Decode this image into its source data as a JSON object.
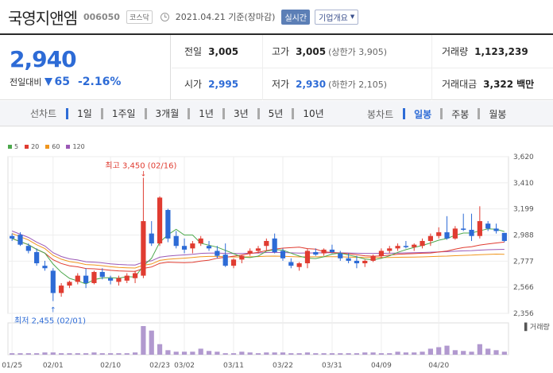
{
  "header": {
    "stock_name": "국영지앤엠",
    "stock_code": "006050",
    "market": "코스닥",
    "date": "2021.04.21 기준(장마감)",
    "realtime": "실시간",
    "company_info": "기업개요"
  },
  "summary": {
    "price": "2,940",
    "change_label": "전일대비",
    "change_value": "65",
    "change_pct": "-2.16%",
    "prev_close_label": "전일",
    "prev_close": "3,005",
    "high_label": "고가",
    "high": "3,005",
    "high_sub": "(상한가 3,905)",
    "volume_label": "거래량",
    "volume": "1,123,239",
    "open_label": "시가",
    "open": "2,995",
    "low_label": "저가",
    "low": "2,930",
    "low_sub": "(하한가 2,105)",
    "amount_label": "거래대금",
    "amount": "3,322",
    "amount_unit": "백만"
  },
  "tabs": {
    "line_chart_label": "선차트",
    "periods": [
      "1일",
      "1주일",
      "3개월",
      "1년",
      "3년",
      "5년",
      "10년"
    ],
    "candle_label": "봉차트",
    "candle_periods": [
      "일봉",
      "주봉",
      "월봉"
    ]
  },
  "colors": {
    "up": "#e03c31",
    "down": "#2d6bd6",
    "ma5": "#4ca84c",
    "ma20": "#e03c31",
    "ma60": "#f0961e",
    "ma120": "#9b59b6",
    "volume": "#b199cf"
  },
  "chart_data": {
    "type": "candlestick",
    "legend": [
      {
        "name": "5",
        "color": "#4ca84c"
      },
      {
        "name": "20",
        "color": "#e03c31"
      },
      {
        "name": "60",
        "color": "#f0961e"
      },
      {
        "name": "120",
        "color": "#9b59b6"
      }
    ],
    "y_ticks": [
      "3,620",
      "3,410",
      "3,199",
      "2,988",
      "2,777",
      "2,566",
      "2,356"
    ],
    "ylim": [
      2356,
      3620
    ],
    "x_ticks": [
      {
        "label": "01/25",
        "index": 0
      },
      {
        "label": "02/01",
        "index": 5
      },
      {
        "label": "02/10",
        "index": 12
      },
      {
        "label": "02/23",
        "index": 18
      },
      {
        "label": "03/02",
        "index": 21
      },
      {
        "label": "03/11",
        "index": 27
      },
      {
        "label": "03/22",
        "index": 33
      },
      {
        "label": "03/31",
        "index": 39
      },
      {
        "label": "04/09",
        "index": 45
      },
      {
        "label": "04/20",
        "index": 52
      }
    ],
    "high_annotation": "최고 3,450 (02/16)",
    "low_annotation": "최저 2,455 (02/01)",
    "volume_label": "거래량",
    "candles": [
      {
        "o": 2980,
        "h": 3000,
        "l": 2940,
        "c": 2960
      },
      {
        "o": 2990,
        "h": 3010,
        "l": 2900,
        "c": 2910
      },
      {
        "o": 2900,
        "h": 2920,
        "l": 2840,
        "c": 2860
      },
      {
        "o": 2850,
        "h": 2880,
        "l": 2740,
        "c": 2760
      },
      {
        "o": 2740,
        "h": 2780,
        "l": 2700,
        "c": 2720
      },
      {
        "o": 2700,
        "h": 2720,
        "l": 2455,
        "c": 2520
      },
      {
        "o": 2520,
        "h": 2600,
        "l": 2490,
        "c": 2580
      },
      {
        "o": 2580,
        "h": 2620,
        "l": 2560,
        "c": 2610
      },
      {
        "o": 2610,
        "h": 2680,
        "l": 2590,
        "c": 2660
      },
      {
        "o": 2660,
        "h": 2720,
        "l": 2560,
        "c": 2600
      },
      {
        "o": 2600,
        "h": 2700,
        "l": 2590,
        "c": 2690
      },
      {
        "o": 2690,
        "h": 2720,
        "l": 2630,
        "c": 2650
      },
      {
        "o": 2640,
        "h": 2660,
        "l": 2590,
        "c": 2620
      },
      {
        "o": 2610,
        "h": 2660,
        "l": 2580,
        "c": 2640
      },
      {
        "o": 2620,
        "h": 2680,
        "l": 2600,
        "c": 2660
      },
      {
        "o": 2640,
        "h": 2700,
        "l": 2600,
        "c": 2680
      },
      {
        "o": 2660,
        "h": 3450,
        "l": 2640,
        "c": 3100
      },
      {
        "o": 3000,
        "h": 3100,
        "l": 2900,
        "c": 2920
      },
      {
        "o": 2920,
        "h": 3300,
        "l": 2900,
        "c": 3290
      },
      {
        "o": 3190,
        "h": 3200,
        "l": 2930,
        "c": 2960
      },
      {
        "o": 2980,
        "h": 3020,
        "l": 2880,
        "c": 2900
      },
      {
        "o": 2900,
        "h": 2960,
        "l": 2840,
        "c": 2870
      },
      {
        "o": 2880,
        "h": 2940,
        "l": 2840,
        "c": 2920
      },
      {
        "o": 2920,
        "h": 2980,
        "l": 2900,
        "c": 2960
      },
      {
        "o": 2900,
        "h": 2940,
        "l": 2860,
        "c": 2880
      },
      {
        "o": 2860,
        "h": 2900,
        "l": 2800,
        "c": 2820
      },
      {
        "o": 2830,
        "h": 2920,
        "l": 2730,
        "c": 2740
      },
      {
        "o": 2740,
        "h": 2800,
        "l": 2720,
        "c": 2790
      },
      {
        "o": 2790,
        "h": 2830,
        "l": 2760,
        "c": 2820
      },
      {
        "o": 2840,
        "h": 2880,
        "l": 2820,
        "c": 2860
      },
      {
        "o": 2860,
        "h": 2900,
        "l": 2840,
        "c": 2880
      },
      {
        "o": 2900,
        "h": 2960,
        "l": 2860,
        "c": 2940
      },
      {
        "o": 2960,
        "h": 3000,
        "l": 2840,
        "c": 2850
      },
      {
        "o": 2860,
        "h": 2880,
        "l": 2780,
        "c": 2800
      },
      {
        "o": 2770,
        "h": 2800,
        "l": 2720,
        "c": 2740
      },
      {
        "o": 2730,
        "h": 2770,
        "l": 2700,
        "c": 2760
      },
      {
        "o": 2760,
        "h": 2880,
        "l": 2720,
        "c": 2860
      },
      {
        "o": 2850,
        "h": 2880,
        "l": 2820,
        "c": 2830
      },
      {
        "o": 2840,
        "h": 2880,
        "l": 2820,
        "c": 2870
      },
      {
        "o": 2870,
        "h": 2910,
        "l": 2840,
        "c": 2850
      },
      {
        "o": 2840,
        "h": 2860,
        "l": 2780,
        "c": 2800
      },
      {
        "o": 2800,
        "h": 2840,
        "l": 2760,
        "c": 2780
      },
      {
        "o": 2780,
        "h": 2820,
        "l": 2720,
        "c": 2760
      },
      {
        "o": 2760,
        "h": 2790,
        "l": 2730,
        "c": 2780
      },
      {
        "o": 2780,
        "h": 2830,
        "l": 2770,
        "c": 2820
      },
      {
        "o": 2820,
        "h": 2880,
        "l": 2800,
        "c": 2860
      },
      {
        "o": 2860,
        "h": 2900,
        "l": 2840,
        "c": 2880
      },
      {
        "o": 2880,
        "h": 2920,
        "l": 2860,
        "c": 2900
      },
      {
        "o": 2900,
        "h": 2940,
        "l": 2880,
        "c": 2890
      },
      {
        "o": 2890,
        "h": 2920,
        "l": 2860,
        "c": 2910
      },
      {
        "o": 2900,
        "h": 2960,
        "l": 2880,
        "c": 2940
      },
      {
        "o": 2940,
        "h": 3000,
        "l": 2900,
        "c": 2980
      },
      {
        "o": 2980,
        "h": 3050,
        "l": 2960,
        "c": 3010
      },
      {
        "o": 3010,
        "h": 3140,
        "l": 2950,
        "c": 2960
      },
      {
        "o": 2960,
        "h": 3060,
        "l": 2950,
        "c": 3040
      },
      {
        "o": 3040,
        "h": 3160,
        "l": 3020,
        "c": 3030
      },
      {
        "o": 3030,
        "h": 3160,
        "l": 2940,
        "c": 2980
      },
      {
        "o": 2980,
        "h": 3220,
        "l": 2960,
        "c": 3100
      },
      {
        "o": 3080,
        "h": 3100,
        "l": 3020,
        "c": 3040
      },
      {
        "o": 3040,
        "h": 3080,
        "l": 3000,
        "c": 3020
      },
      {
        "o": 3005,
        "h": 3005,
        "l": 2930,
        "c": 2940
      }
    ],
    "volume": [
      2,
      2,
      2,
      2,
      3,
      3,
      2,
      2,
      2,
      2,
      3,
      2,
      2,
      2,
      2,
      3,
      38,
      32,
      14,
      6,
      4,
      4,
      4,
      8,
      5,
      4,
      2,
      2,
      4,
      3,
      2,
      3,
      3,
      3,
      2,
      2,
      3,
      2,
      2,
      2,
      2,
      2,
      2,
      3,
      3,
      2,
      2,
      4,
      3,
      3,
      4,
      8,
      10,
      12,
      6,
      5,
      4,
      14,
      8,
      6,
      4
    ]
  }
}
